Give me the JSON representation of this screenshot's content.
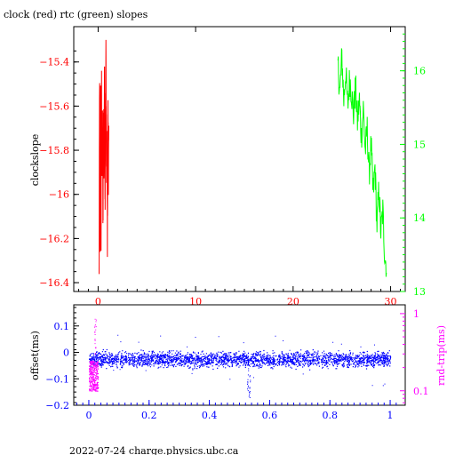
{
  "title": "clock (red) rtc (green) slopes",
  "footer": "2022-07-24 charge.physics.ubc.ca",
  "colors": {
    "clock": "#ff0000",
    "rtc": "#00ff00",
    "offset": "#0000ff",
    "rndtrip": "#ff00ff",
    "axis": "#000000"
  },
  "chart_data": [
    {
      "type": "line",
      "ylabel": "clockslope",
      "xlim": [
        -2.5,
        31.5
      ],
      "ylim": [
        -16.44,
        -15.24
      ],
      "xticks": [
        0,
        10,
        20,
        30
      ],
      "xtick_labels": [
        "0",
        "10",
        "20",
        "30"
      ],
      "yticks": [
        -16.4,
        -16.2,
        -16,
        -15.8,
        -15.6,
        -15.4
      ],
      "ytick_labels": [
        "−16.4",
        "−16.2",
        "−16",
        "−15.8",
        "−15.6",
        "−15.4"
      ],
      "right_ylim": [
        13.0,
        16.6
      ],
      "right_yticks": [
        13,
        14,
        15,
        16
      ],
      "right_ytick_labels": [
        "13",
        "14",
        "15",
        "16"
      ],
      "series": [
        {
          "axis": "left",
          "x": [
            0.1,
            0.15,
            0.2,
            0.25,
            0.3,
            0.35,
            0.4,
            0.45,
            0.5,
            0.55,
            0.6,
            0.65,
            0.7,
            0.75,
            0.8,
            0.85,
            0.9,
            0.95,
            1.0,
            1.05,
            1.1
          ],
          "y": [
            -16.4,
            -15.45,
            -16.3,
            -15.6,
            -16.2,
            -15.52,
            -15.95,
            -15.7,
            -16.1,
            -15.6,
            -15.85,
            -15.4,
            -16.05,
            -15.75,
            -15.32,
            -15.95,
            -15.78,
            -16.18,
            -15.62,
            -15.88,
            -15.8
          ]
        },
        {
          "axis": "right",
          "x": [
            24.6,
            24.8,
            25.0,
            25.2,
            25.4,
            25.6,
            25.8,
            26.0,
            26.2,
            26.4,
            26.6,
            26.8,
            27.0,
            27.2,
            27.4,
            27.6,
            27.8,
            28.0,
            28.2,
            28.4,
            28.6,
            28.8,
            29.0,
            29.2,
            29.4,
            29.6
          ],
          "y": [
            16.1,
            15.7,
            16.2,
            15.6,
            16.0,
            15.5,
            15.9,
            15.7,
            15.4,
            15.8,
            15.3,
            15.6,
            15.1,
            15.5,
            14.9,
            15.2,
            14.6,
            15.0,
            14.3,
            14.7,
            13.9,
            14.4,
            13.8,
            14.1,
            13.5,
            13.3
          ]
        }
      ]
    },
    {
      "type": "scatter",
      "ylabel": "offset(ms)",
      "right_ylabel": "rnd-trip(ms)",
      "xlim": [
        -0.05,
        1.05
      ],
      "ylim": [
        -0.2,
        0.18
      ],
      "xticks": [
        0,
        0.2,
        0.4,
        0.6,
        0.8,
        1
      ],
      "xtick_labels": [
        "0",
        "0.2",
        "0.4",
        "0.6",
        "0.8",
        "1"
      ],
      "yticks": [
        -0.2,
        -0.1,
        0,
        0.1
      ],
      "ytick_labels": [
        "−0.2",
        "−0.1",
        "0",
        "0.1"
      ],
      "right_ylim_log": [
        0.065,
        1.3
      ],
      "right_yticks": [
        0.1,
        1
      ],
      "right_ytick_labels": [
        "0.1",
        "1"
      ],
      "series": [
        {
          "axis": "left",
          "x_range": [
            0,
            1
          ],
          "y_center": -0.025,
          "y_spread": 0.025,
          "dip_at": 0.53,
          "dip_min": -0.17
        },
        {
          "axis": "right",
          "x_range": [
            0,
            0.03
          ],
          "y_range": [
            0.1,
            0.9
          ]
        }
      ]
    }
  ]
}
